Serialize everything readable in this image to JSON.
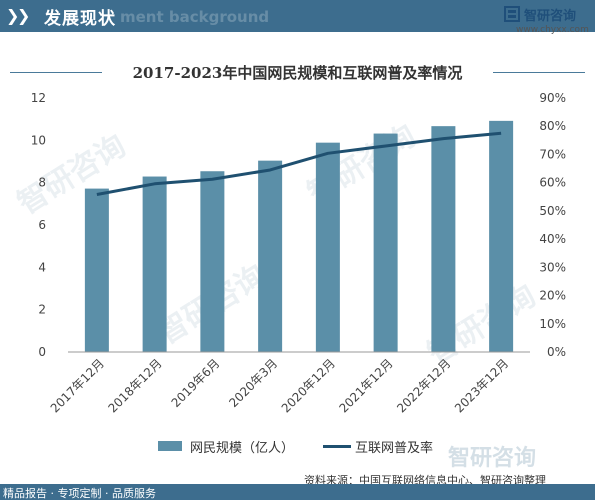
{
  "header": {
    "title": "发展现状",
    "ghost_text": "ment background"
  },
  "logo": {
    "name": "智研咨询",
    "url": "www.chyxx.com"
  },
  "watermark": {
    "text": "智研咨询"
  },
  "chart_data": {
    "type": "bar",
    "title": "2017-2023年中国网民规模和互联网普及率情况",
    "categories": [
      "2017年12月",
      "2018年12月",
      "2019年6月",
      "2020年3月",
      "2020年12月",
      "2021年12月",
      "2022年12月",
      "2023年12月"
    ],
    "series": [
      {
        "name": "网民规模（亿人）",
        "type": "bar",
        "axis": "left",
        "values": [
          7.72,
          8.29,
          8.54,
          9.04,
          9.89,
          10.32,
          10.67,
          10.92
        ]
      },
      {
        "name": "互联网普及率",
        "type": "line",
        "axis": "right",
        "values": [
          55.8,
          59.6,
          61.2,
          64.5,
          70.4,
          73.0,
          75.6,
          77.5
        ]
      }
    ],
    "y_left": {
      "min": 0,
      "max": 12,
      "ticks": [
        "0",
        "2",
        "4",
        "6",
        "8",
        "10",
        "12"
      ]
    },
    "y_right": {
      "min": 0,
      "max": 90,
      "ticks": [
        "0%",
        "10%",
        "20%",
        "30%",
        "40%",
        "50%",
        "60%",
        "70%",
        "80%",
        "90%"
      ]
    },
    "legend_position": "bottom",
    "grid": false,
    "colors": {
      "bar": "#5b8fa8",
      "line": "#1f5070"
    }
  },
  "legend": {
    "bar_label": "网民规模（亿人）",
    "line_label": "互联网普及率"
  },
  "source": "资料来源：中国互联网络信息中心、智研咨询整理",
  "footer": "精品报告 · 专项定制 · 品质服务"
}
